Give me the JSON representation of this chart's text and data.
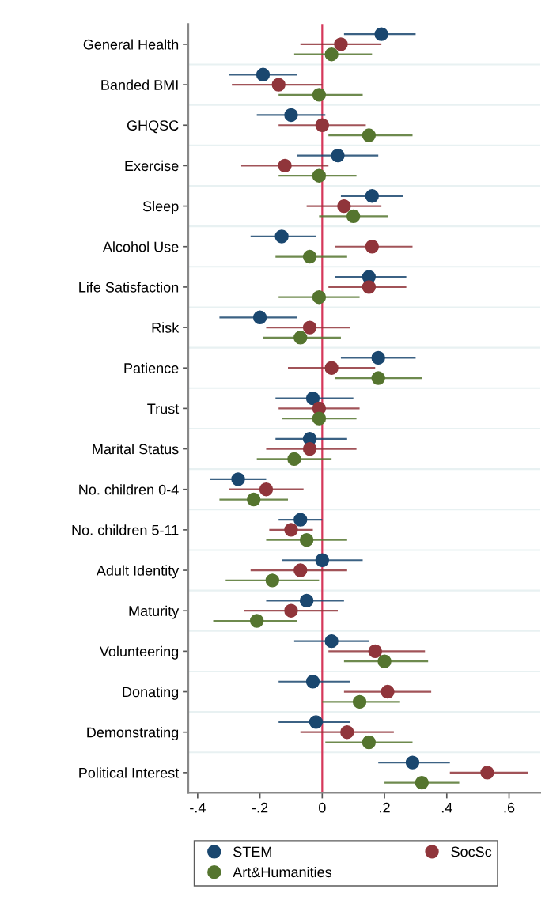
{
  "chart_data": {
    "type": "scatter",
    "orientation": "horizontal",
    "categories": [
      "General Health",
      "Banded BMI",
      "GHQSC",
      "Exercise",
      "Sleep",
      "Alcohol Use",
      "Life Satisfaction",
      "Risk",
      "Patience",
      "Trust",
      "Marital Status",
      "No. children 0-4",
      "No. children 5-11",
      "Adult Identity",
      "Maturity",
      "Volunteering",
      "Donating",
      "Demonstrating",
      "Political Interest"
    ],
    "series": [
      {
        "name": "STEM",
        "color": "#1a476f",
        "values": [
          0.19,
          -0.19,
          -0.1,
          0.05,
          0.16,
          -0.13,
          0.15,
          -0.2,
          0.18,
          -0.03,
          -0.04,
          -0.27,
          -0.07,
          0.0,
          -0.05,
          0.03,
          -0.03,
          -0.02,
          0.29
        ],
        "errors": [
          [
            0.07,
            0.3
          ],
          [
            -0.3,
            -0.08
          ],
          [
            -0.21,
            0.01
          ],
          [
            -0.08,
            0.18
          ],
          [
            0.06,
            0.26
          ],
          [
            -0.23,
            -0.02
          ],
          [
            0.04,
            0.27
          ],
          [
            -0.33,
            -0.08
          ],
          [
            0.06,
            0.3
          ],
          [
            -0.15,
            0.1
          ],
          [
            -0.15,
            0.08
          ],
          [
            -0.36,
            -0.18
          ],
          [
            -0.14,
            0.0
          ],
          [
            -0.13,
            0.13
          ],
          [
            -0.18,
            0.07
          ],
          [
            -0.09,
            0.15
          ],
          [
            -0.14,
            0.09
          ],
          [
            -0.14,
            0.09
          ],
          [
            0.18,
            0.41
          ]
        ]
      },
      {
        "name": "SocSc",
        "color": "#90353b",
        "values": [
          0.06,
          -0.14,
          0.0,
          -0.12,
          0.07,
          0.16,
          0.15,
          -0.04,
          0.03,
          -0.01,
          -0.04,
          -0.18,
          -0.1,
          -0.07,
          -0.1,
          0.17,
          0.21,
          0.08,
          0.53
        ],
        "errors": [
          [
            -0.07,
            0.19
          ],
          [
            -0.29,
            0.0
          ],
          [
            -0.14,
            0.14
          ],
          [
            -0.26,
            0.02
          ],
          [
            -0.05,
            0.19
          ],
          [
            0.04,
            0.29
          ],
          [
            0.02,
            0.27
          ],
          [
            -0.18,
            0.09
          ],
          [
            -0.11,
            0.17
          ],
          [
            -0.14,
            0.12
          ],
          [
            -0.18,
            0.11
          ],
          [
            -0.3,
            -0.06
          ],
          [
            -0.17,
            -0.03
          ],
          [
            -0.23,
            0.08
          ],
          [
            -0.25,
            0.05
          ],
          [
            0.02,
            0.33
          ],
          [
            0.07,
            0.35
          ],
          [
            -0.07,
            0.23
          ],
          [
            0.41,
            0.66
          ]
        ]
      },
      {
        "name": "Art&Humanities",
        "color": "#55752f",
        "values": [
          0.03,
          -0.01,
          0.15,
          -0.01,
          0.1,
          -0.04,
          -0.01,
          -0.07,
          0.18,
          -0.01,
          -0.09,
          -0.22,
          -0.05,
          -0.16,
          -0.21,
          0.2,
          0.12,
          0.15,
          0.32
        ],
        "errors": [
          [
            -0.09,
            0.16
          ],
          [
            -0.14,
            0.13
          ],
          [
            0.02,
            0.29
          ],
          [
            -0.14,
            0.11
          ],
          [
            -0.01,
            0.21
          ],
          [
            -0.15,
            0.08
          ],
          [
            -0.14,
            0.12
          ],
          [
            -0.19,
            0.06
          ],
          [
            0.04,
            0.32
          ],
          [
            -0.13,
            0.11
          ],
          [
            -0.21,
            0.03
          ],
          [
            -0.33,
            -0.11
          ],
          [
            -0.18,
            0.08
          ],
          [
            -0.31,
            -0.01
          ],
          [
            -0.35,
            -0.08
          ],
          [
            0.07,
            0.34
          ],
          [
            0.0,
            0.25
          ],
          [
            0.01,
            0.29
          ],
          [
            0.2,
            0.44
          ]
        ]
      }
    ],
    "xlim": [
      -0.43,
      0.7
    ],
    "xticks": [
      {
        "value": -0.4,
        "label": "-.4"
      },
      {
        "value": -0.2,
        "label": "-.2"
      },
      0,
      {
        "value": 0.2,
        "label": ".2"
      },
      {
        "value": 0.4,
        "label": ".4"
      },
      {
        "value": 0.6,
        "label": ".6"
      }
    ],
    "ref_lines": [
      {
        "axis": "x",
        "value": 0,
        "label": null,
        "color": "#d6385b"
      }
    ],
    "grid": "y",
    "legend": "bottom",
    "marker": "circle"
  }
}
